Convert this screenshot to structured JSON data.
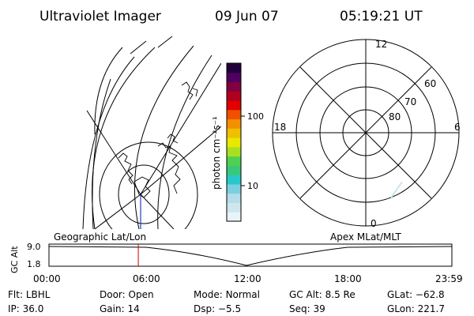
{
  "header": {
    "title": "Ultraviolet Imager",
    "date": "09 Jun 07",
    "time": "05:19:21 UT"
  },
  "colorbar": {
    "unit_label": "photon cm⁻²s⁻¹",
    "ticks": [
      "100",
      "10"
    ],
    "colors": [
      "#e8f4f8",
      "#cfe6ee",
      "#b4dde9",
      "#7ccfe0",
      "#28c8c8",
      "#38c878",
      "#50d050",
      "#a8e020",
      "#e8e800",
      "#f0c000",
      "#f49000",
      "#f05000",
      "#e00000",
      "#b00020",
      "#800040",
      "#500060",
      "#20003a"
    ]
  },
  "polar": {
    "mlt_labels": {
      "top": "12",
      "left": "18",
      "right": "6",
      "bottom": "0"
    },
    "lat_labels": [
      "60",
      "70",
      "80"
    ]
  },
  "timeline": {
    "axis_title": "GC Alt",
    "y_ticks": [
      "9.0",
      "1.8"
    ],
    "left_label": "Geographic Lat/Lon",
    "right_label": "Apex MLat/MLT",
    "x_ticks": [
      "00:00",
      "06:00",
      "12:00",
      "18:00",
      "23:59"
    ],
    "marker_time": "05:19",
    "marker_color": "#cc0000"
  },
  "footer": {
    "rows": [
      [
        {
          "label": "Flt:",
          "value": "LBHL"
        },
        {
          "label": "Door:",
          "value": "Open"
        },
        {
          "label": "Mode:",
          "value": "Normal"
        },
        {
          "label": "GC Alt:",
          "value": "8.5 Re"
        },
        {
          "label": "GLat:",
          "value": "−62.8"
        }
      ],
      [
        {
          "label": "IP:",
          "value": "36.0"
        },
        {
          "label": "Gain:",
          "value": "14"
        },
        {
          "label": "Dsp:",
          "value": "−5.5"
        },
        {
          "label": "Seq:",
          "value": "39"
        },
        {
          "label": "GLon:",
          "value": "221.7"
        }
      ]
    ]
  }
}
